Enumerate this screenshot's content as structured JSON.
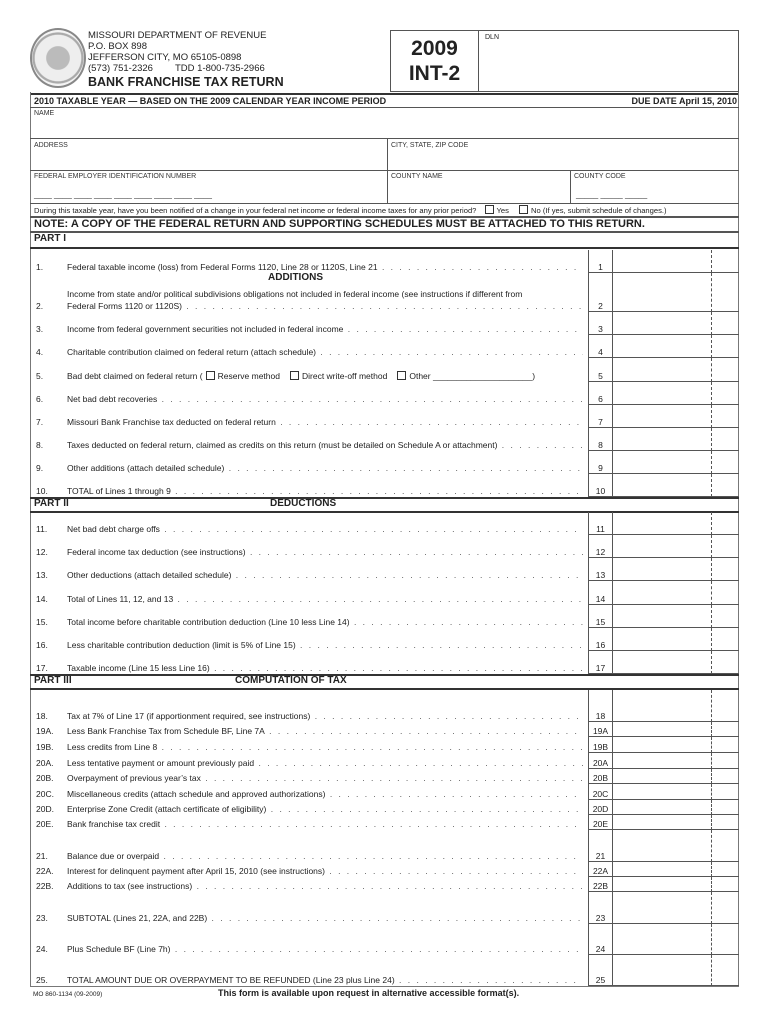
{
  "header": {
    "agency": "MISSOURI DEPARTMENT OF REVENUE",
    "po_box": "P.O. BOX 898",
    "city": "JEFFERSON CITY, MO 65105-0898",
    "phone": "(573) 751-2326",
    "tdd": "TDD 1-800-735-2966",
    "title": "BANK FRANCHISE TAX RETURN",
    "year": "2009",
    "form": "INT-2",
    "dln_label": "DLN"
  },
  "taxable_year": "2010 TAXABLE YEAR — BASED ON THE 2009 CALENDAR YEAR INCOME PERIOD",
  "due_date": "DUE DATE April 15, 2010",
  "fields": {
    "name": "NAME",
    "address": "ADDRESS",
    "city_state_zip": "CITY, STATE, ZIP CODE",
    "fein": "FEDERAL EMPLOYER IDENTIFICATION NUMBER",
    "county_name": "COUNTY NAME",
    "county_code": "COUNTY CODE"
  },
  "question": {
    "text": "During this taxable year, have you been notified of a change in your federal net income or federal income taxes for any prior period?",
    "yes": "Yes",
    "no": "No  (If yes, submit schedule of changes.)"
  },
  "note": "NOTE: A COPY OF THE FEDERAL RETURN AND SUPPORTING SCHEDULES MUST BE ATTACHED TO THIS RETURN.",
  "parts": [
    {
      "label": "PART I",
      "heading": "ADDITIONS"
    },
    {
      "label": "PART II",
      "heading": "DEDUCTIONS"
    },
    {
      "label": "PART III",
      "heading": "COMPUTATION OF TAX"
    }
  ],
  "lines": [
    {
      "num": "1.",
      "box": "1",
      "text": "Federal taxable income (loss) from Federal Forms 1120, Line 28 or 1120S, Line 21"
    },
    {
      "num": "2.",
      "box": "2",
      "text": "Income from state and/or political subdivisions obligations not included in federal income (see instructions if different from",
      "text2": "Federal Forms 1120 or 1120S)"
    },
    {
      "num": "3.",
      "box": "3",
      "text": "Income from federal government securities not included in federal income"
    },
    {
      "num": "4.",
      "box": "4",
      "text": "Charitable contribution claimed on federal return (attach schedule)"
    },
    {
      "num": "5.",
      "box": "5",
      "text": "Bad debt claimed on federal return (",
      "opt1": "Reserve method",
      "opt2": "Direct write-off method",
      "opt3": "Other",
      "end": ")"
    },
    {
      "num": "6.",
      "box": "6",
      "text": "Net bad debt recoveries"
    },
    {
      "num": "7.",
      "box": "7",
      "text": "Missouri Bank Franchise tax deducted on federal return"
    },
    {
      "num": "8.",
      "box": "8",
      "text": "Taxes deducted on federal return, claimed as credits on this return  (must be detailed on Schedule A or attachment)"
    },
    {
      "num": "9.",
      "box": "9",
      "text": "Other additions (attach detailed schedule)"
    },
    {
      "num": "10.",
      "box": "10",
      "text": "TOTAL of Lines 1 through 9"
    },
    {
      "num": "11.",
      "box": "11",
      "text": "Net bad debt charge offs"
    },
    {
      "num": "12.",
      "box": "12",
      "text": "Federal income tax deduction (see instructions)"
    },
    {
      "num": "13.",
      "box": "13",
      "text": "Other deductions (attach detailed schedule)"
    },
    {
      "num": "14.",
      "box": "14",
      "text": "Total of Lines 11, 12, and 13"
    },
    {
      "num": "15.",
      "box": "15",
      "text": "Total income before charitable contribution deduction (Line 10 less Line 14)"
    },
    {
      "num": "16.",
      "box": "16",
      "text": "Less charitable contribution deduction (limit is 5% of Line 15)"
    },
    {
      "num": "17.",
      "box": "17",
      "text": "Taxable income (Line 15 less Line 16)"
    },
    {
      "num": "18.",
      "box": "18",
      "text": "Tax at 7% of Line 17 (if apportionment required, see instructions)"
    },
    {
      "num": "19A.",
      "box": "19A",
      "text": "Less Bank Franchise Tax from Schedule BF, Line 7A"
    },
    {
      "num": "19B.",
      "box": "19B",
      "text": "Less credits from Line 8"
    },
    {
      "num": "20A.",
      "box": "20A",
      "text": "Less tentative payment or amount previously paid"
    },
    {
      "num": "20B.",
      "box": "20B",
      "text": "Overpayment of previous year’s tax"
    },
    {
      "num": "20C.",
      "box": "20C",
      "text": "Miscellaneous credits (attach schedule and approved authorizations)"
    },
    {
      "num": "20D.",
      "box": "20D",
      "text": "Enterprise Zone Credit (attach certificate of eligibility)"
    },
    {
      "num": "20E.",
      "box": "20E",
      "text": "Bank franchise tax credit"
    },
    {
      "num": "21.",
      "box": "21",
      "text": "Balance due or overpaid"
    },
    {
      "num": "22A.",
      "box": "22A",
      "text": "Interest for delinquent payment after April 15, 2010 (see instructions)"
    },
    {
      "num": "22B.",
      "box": "22B",
      "text": "Additions to tax (see instructions)"
    },
    {
      "num": "23.",
      "box": "23",
      "text": "SUBTOTAL (Lines 21, 22A, and 22B)"
    },
    {
      "num": "24.",
      "box": "24",
      "text": "Plus Schedule BF (Line 7h)"
    },
    {
      "num": "25.",
      "box": "25",
      "text": "TOTAL AMOUNT DUE OR OVERPAYMENT TO BE REFUNDED (Line 23 plus Line 24)"
    }
  ],
  "footer": {
    "form_number": "MO 860-1134 (09-2009)",
    "accessibility": "This form is available upon request in alternative accessible format(s)."
  }
}
